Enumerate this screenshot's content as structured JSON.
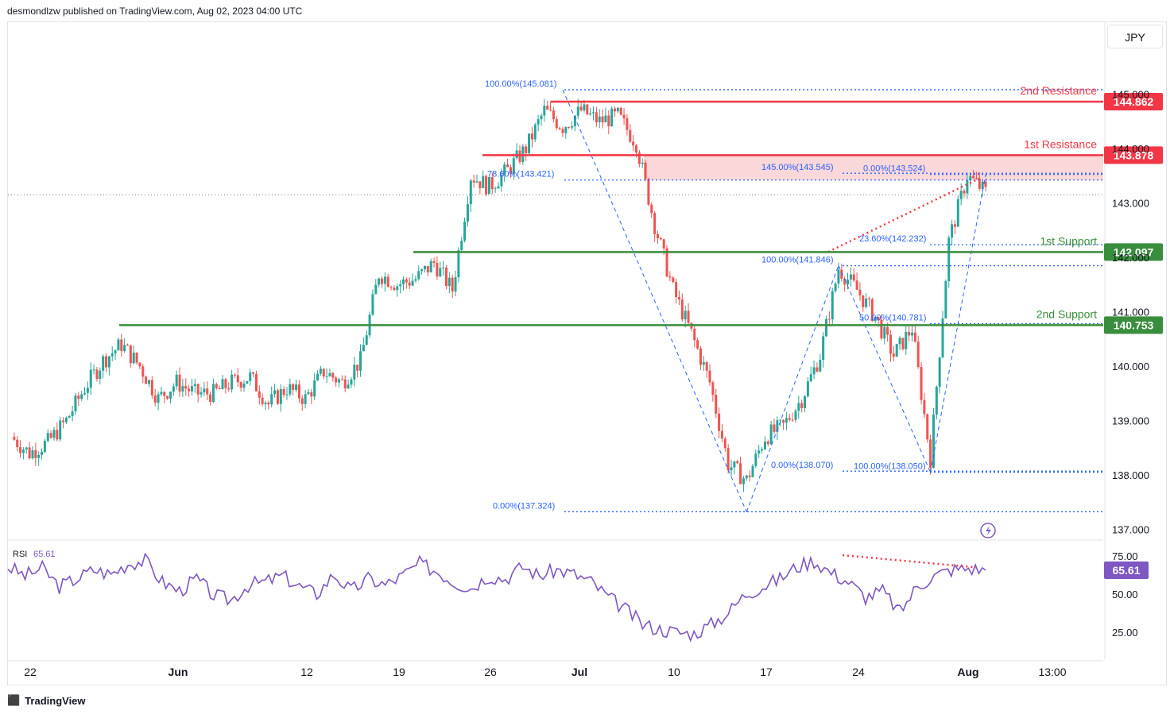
{
  "header": {
    "text": "desmondlzw published on TradingView.com, Aug 02, 2023 04:00 UTC"
  },
  "symbol_button": {
    "label": "JPY"
  },
  "footer": {
    "brand": "TradingView",
    "logo": "tradingview-logo-icon"
  },
  "colors": {
    "up": "#26a69a",
    "down": "#ef5350",
    "resistance": "#f23645",
    "support": "#388e3c",
    "fib": "#2962ff",
    "rsi": "#7e57c2",
    "zone": "#f8c9cb"
  },
  "chart_data": [
    {
      "type": "candlestick",
      "title": "",
      "price_scale": {
        "ticks": [
          "137.000",
          "138.000",
          "139.000",
          "140.000",
          "141.000",
          "142.000",
          "143.000",
          "144.000",
          "145.000"
        ],
        "range": [
          136.8,
          146.2
        ]
      },
      "time_axis": {
        "labels": [
          "22",
          "Jun",
          "12",
          "19",
          "26",
          "Jul",
          "10",
          "17",
          "24",
          "Aug",
          "13:00"
        ]
      },
      "levels": [
        {
          "name": "2nd Resistance",
          "price": "144.862",
          "kind": "resistance"
        },
        {
          "name": "1st Resistance",
          "price": "143.878",
          "kind": "resistance"
        },
        {
          "name": "1st Support",
          "price": "142.097",
          "kind": "support"
        },
        {
          "name": "2nd Support",
          "price": "140.753",
          "kind": "support"
        }
      ],
      "resistance_zone": [
        143.42,
        143.88
      ],
      "current_price": 143.15,
      "fib_labels": [
        {
          "text": "100.00%(145.081)",
          "price": 145.081
        },
        {
          "text": "78.60%(143.421)",
          "price": 143.421
        },
        {
          "text": "0.00%(137.324)",
          "price": 137.324
        },
        {
          "text": "145.00%(143.545)",
          "price": 143.545
        },
        {
          "text": "0.00%(143.524)",
          "price": 143.524
        },
        {
          "text": "23.60%(142.232)",
          "price": 142.232
        },
        {
          "text": "100.00%(141.846)",
          "price": 141.846
        },
        {
          "text": "50.00%(140.781)",
          "price": 140.781
        },
        {
          "text": "0.00%(138.070)",
          "price": 138.07
        },
        {
          "text": "100.00%(138.050)",
          "price": 138.05
        }
      ],
      "close_path": [
        [
          "May 19",
          138.7
        ],
        [
          "May 22",
          138.4
        ],
        [
          "May 23",
          138.6
        ],
        [
          "May 24",
          139.0
        ],
        [
          "May 25",
          139.6
        ],
        [
          "May 26",
          140.1
        ],
        [
          "May 29",
          140.4
        ],
        [
          "May 30",
          140.0
        ],
        [
          "May 31",
          139.4
        ],
        [
          "Jun 1",
          139.7
        ],
        [
          "Jun 2",
          139.5
        ],
        [
          "Jun 5",
          139.5
        ],
        [
          "Jun 6",
          139.7
        ],
        [
          "Jun 7",
          139.8
        ],
        [
          "Jun 8",
          139.3
        ],
        [
          "Jun 9",
          139.6
        ],
        [
          "Jun 12",
          139.4
        ],
        [
          "Jun 13",
          139.9
        ],
        [
          "Jun 14",
          139.7
        ],
        [
          "Jun 15",
          140.1
        ],
        [
          "Jun 16",
          141.7
        ],
        [
          "Jun 19",
          141.5
        ],
        [
          "Jun 20",
          141.6
        ],
        [
          "Jun 21",
          141.9
        ],
        [
          "Jun 22",
          141.4
        ],
        [
          "Jun 23",
          143.5
        ],
        [
          "Jun 26",
          143.3
        ],
        [
          "Jun 27",
          143.6
        ],
        [
          "Jun 28",
          144.0
        ],
        [
          "Jun 29",
          144.7
        ],
        [
          "Jun 30",
          144.4
        ],
        [
          "Jul 3",
          144.7
        ],
        [
          "Jul 4",
          144.5
        ],
        [
          "Jul 5",
          144.6
        ],
        [
          "Jul 6",
          144.1
        ],
        [
          "Jul 7",
          142.6
        ],
        [
          "Jul 10",
          141.4
        ],
        [
          "Jul 11",
          140.6
        ],
        [
          "Jul 12",
          139.7
        ],
        [
          "Jul 13",
          138.2
        ],
        [
          "Jul 14",
          137.9
        ],
        [
          "Jul 17",
          138.7
        ],
        [
          "Jul 18",
          138.9
        ],
        [
          "Jul 19",
          139.4
        ],
        [
          "Jul 20",
          140.2
        ],
        [
          "Jul 21",
          141.8
        ],
        [
          "Jul 24",
          141.4
        ],
        [
          "Jul 25",
          140.9
        ],
        [
          "Jul 26",
          140.2
        ],
        [
          "Jul 27",
          140.7
        ],
        [
          "Jul 28",
          138.3
        ],
        [
          "Jul 31",
          142.3
        ],
        [
          "Aug 1",
          143.5
        ],
        [
          "Aug 2",
          143.2
        ]
      ]
    },
    {
      "type": "line",
      "title": "RSI",
      "series": [
        {
          "name": "RSI",
          "last_value": "65.61"
        }
      ],
      "ticks": [
        "75.00",
        "50.00",
        "25.00"
      ],
      "range": [
        10,
        88
      ],
      "values": [
        68,
        62,
        67,
        55,
        60,
        66,
        63,
        70,
        72,
        58,
        52,
        60,
        49,
        46,
        56,
        58,
        62,
        55,
        50,
        63,
        52,
        60,
        56,
        62,
        70,
        65,
        58,
        54,
        62,
        60,
        68,
        62,
        66,
        63,
        58,
        48,
        40,
        30,
        27,
        25,
        24,
        30,
        38,
        50,
        55,
        60,
        68,
        72,
        64,
        58,
        48,
        52,
        38,
        55,
        62,
        66,
        67,
        65.6
      ]
    }
  ]
}
